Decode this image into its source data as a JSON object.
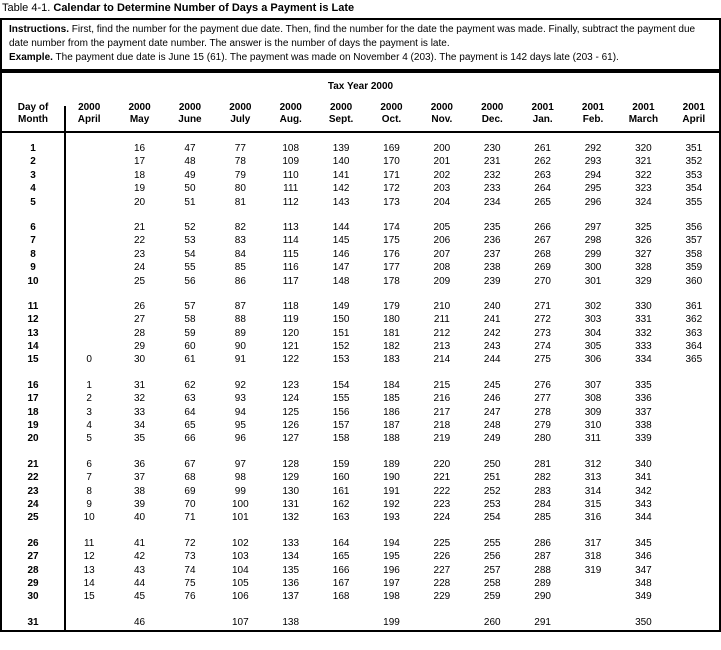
{
  "page_title": {
    "prefix": "Table 4-1.",
    "title": "Calendar to Determine Number of Days a Payment is Late"
  },
  "instructions": {
    "label": "Instructions.",
    "text": "First, find the number for the payment due date. Then, find the number for the date the payment was made. Finally, subtract the payment due date number from the payment date number. The answer is the number of days the payment is late.",
    "example_label": "Example.",
    "example_text": "The payment due date is June 15 (61). The payment was made on November 4 (203). The payment is 142 days late (203 - 61)."
  },
  "calendar": {
    "section_title": "Tax Year 2000",
    "day_header_line1": "Day of",
    "day_header_line2": "Month",
    "group_size": 5,
    "months": [
      {
        "year": "2000",
        "name": "April"
      },
      {
        "year": "2000",
        "name": "May"
      },
      {
        "year": "2000",
        "name": "June"
      },
      {
        "year": "2000",
        "name": "July"
      },
      {
        "year": "2000",
        "name": "Aug."
      },
      {
        "year": "2000",
        "name": "Sept."
      },
      {
        "year": "2000",
        "name": "Oct."
      },
      {
        "year": "2000",
        "name": "Nov."
      },
      {
        "year": "2000",
        "name": "Dec."
      },
      {
        "year": "2001",
        "name": "Jan."
      },
      {
        "year": "2001",
        "name": "Feb."
      },
      {
        "year": "2001",
        "name": "March"
      },
      {
        "year": "2001",
        "name": "April"
      }
    ],
    "days": [
      "1",
      "2",
      "3",
      "4",
      "5",
      "6",
      "7",
      "8",
      "9",
      "10",
      "11",
      "12",
      "13",
      "14",
      "15",
      "16",
      "17",
      "18",
      "19",
      "20",
      "21",
      "22",
      "23",
      "24",
      "25",
      "26",
      "27",
      "28",
      "29",
      "30",
      "31"
    ],
    "rows": [
      [
        "",
        "16",
        "47",
        "77",
        "108",
        "139",
        "169",
        "200",
        "230",
        "261",
        "292",
        "320",
        "351"
      ],
      [
        "",
        "17",
        "48",
        "78",
        "109",
        "140",
        "170",
        "201",
        "231",
        "262",
        "293",
        "321",
        "352"
      ],
      [
        "",
        "18",
        "49",
        "79",
        "110",
        "141",
        "171",
        "202",
        "232",
        "263",
        "294",
        "322",
        "353"
      ],
      [
        "",
        "19",
        "50",
        "80",
        "111",
        "142",
        "172",
        "203",
        "233",
        "264",
        "295",
        "323",
        "354"
      ],
      [
        "",
        "20",
        "51",
        "81",
        "112",
        "143",
        "173",
        "204",
        "234",
        "265",
        "296",
        "324",
        "355"
      ],
      [
        "",
        "21",
        "52",
        "82",
        "113",
        "144",
        "174",
        "205",
        "235",
        "266",
        "297",
        "325",
        "356"
      ],
      [
        "",
        "22",
        "53",
        "83",
        "114",
        "145",
        "175",
        "206",
        "236",
        "267",
        "298",
        "326",
        "357"
      ],
      [
        "",
        "23",
        "54",
        "84",
        "115",
        "146",
        "176",
        "207",
        "237",
        "268",
        "299",
        "327",
        "358"
      ],
      [
        "",
        "24",
        "55",
        "85",
        "116",
        "147",
        "177",
        "208",
        "238",
        "269",
        "300",
        "328",
        "359"
      ],
      [
        "",
        "25",
        "56",
        "86",
        "117",
        "148",
        "178",
        "209",
        "239",
        "270",
        "301",
        "329",
        "360"
      ],
      [
        "",
        "26",
        "57",
        "87",
        "118",
        "149",
        "179",
        "210",
        "240",
        "271",
        "302",
        "330",
        "361"
      ],
      [
        "",
        "27",
        "58",
        "88",
        "119",
        "150",
        "180",
        "211",
        "241",
        "272",
        "303",
        "331",
        "362"
      ],
      [
        "",
        "28",
        "59",
        "89",
        "120",
        "151",
        "181",
        "212",
        "242",
        "273",
        "304",
        "332",
        "363"
      ],
      [
        "",
        "29",
        "60",
        "90",
        "121",
        "152",
        "182",
        "213",
        "243",
        "274",
        "305",
        "333",
        "364"
      ],
      [
        "0",
        "30",
        "61",
        "91",
        "122",
        "153",
        "183",
        "214",
        "244",
        "275",
        "306",
        "334",
        "365"
      ],
      [
        "1",
        "31",
        "62",
        "92",
        "123",
        "154",
        "184",
        "215",
        "245",
        "276",
        "307",
        "335",
        ""
      ],
      [
        "2",
        "32",
        "63",
        "93",
        "124",
        "155",
        "185",
        "216",
        "246",
        "277",
        "308",
        "336",
        ""
      ],
      [
        "3",
        "33",
        "64",
        "94",
        "125",
        "156",
        "186",
        "217",
        "247",
        "278",
        "309",
        "337",
        ""
      ],
      [
        "4",
        "34",
        "65",
        "95",
        "126",
        "157",
        "187",
        "218",
        "248",
        "279",
        "310",
        "338",
        ""
      ],
      [
        "5",
        "35",
        "66",
        "96",
        "127",
        "158",
        "188",
        "219",
        "249",
        "280",
        "311",
        "339",
        ""
      ],
      [
        "6",
        "36",
        "67",
        "97",
        "128",
        "159",
        "189",
        "220",
        "250",
        "281",
        "312",
        "340",
        ""
      ],
      [
        "7",
        "37",
        "68",
        "98",
        "129",
        "160",
        "190",
        "221",
        "251",
        "282",
        "313",
        "341",
        ""
      ],
      [
        "8",
        "38",
        "69",
        "99",
        "130",
        "161",
        "191",
        "222",
        "252",
        "283",
        "314",
        "342",
        ""
      ],
      [
        "9",
        "39",
        "70",
        "100",
        "131",
        "162",
        "192",
        "223",
        "253",
        "284",
        "315",
        "343",
        ""
      ],
      [
        "10",
        "40",
        "71",
        "101",
        "132",
        "163",
        "193",
        "224",
        "254",
        "285",
        "316",
        "344",
        ""
      ],
      [
        "11",
        "41",
        "72",
        "102",
        "133",
        "164",
        "194",
        "225",
        "255",
        "286",
        "317",
        "345",
        ""
      ],
      [
        "12",
        "42",
        "73",
        "103",
        "134",
        "165",
        "195",
        "226",
        "256",
        "287",
        "318",
        "346",
        ""
      ],
      [
        "13",
        "43",
        "74",
        "104",
        "135",
        "166",
        "196",
        "227",
        "257",
        "288",
        "319",
        "347",
        ""
      ],
      [
        "14",
        "44",
        "75",
        "105",
        "136",
        "167",
        "197",
        "228",
        "258",
        "289",
        "",
        "348",
        ""
      ],
      [
        "15",
        "45",
        "76",
        "106",
        "137",
        "168",
        "198",
        "229",
        "259",
        "290",
        "",
        "349",
        ""
      ],
      [
        "",
        "46",
        "",
        "107",
        "138",
        "",
        "199",
        "",
        "260",
        "291",
        "",
        "350",
        ""
      ]
    ]
  }
}
